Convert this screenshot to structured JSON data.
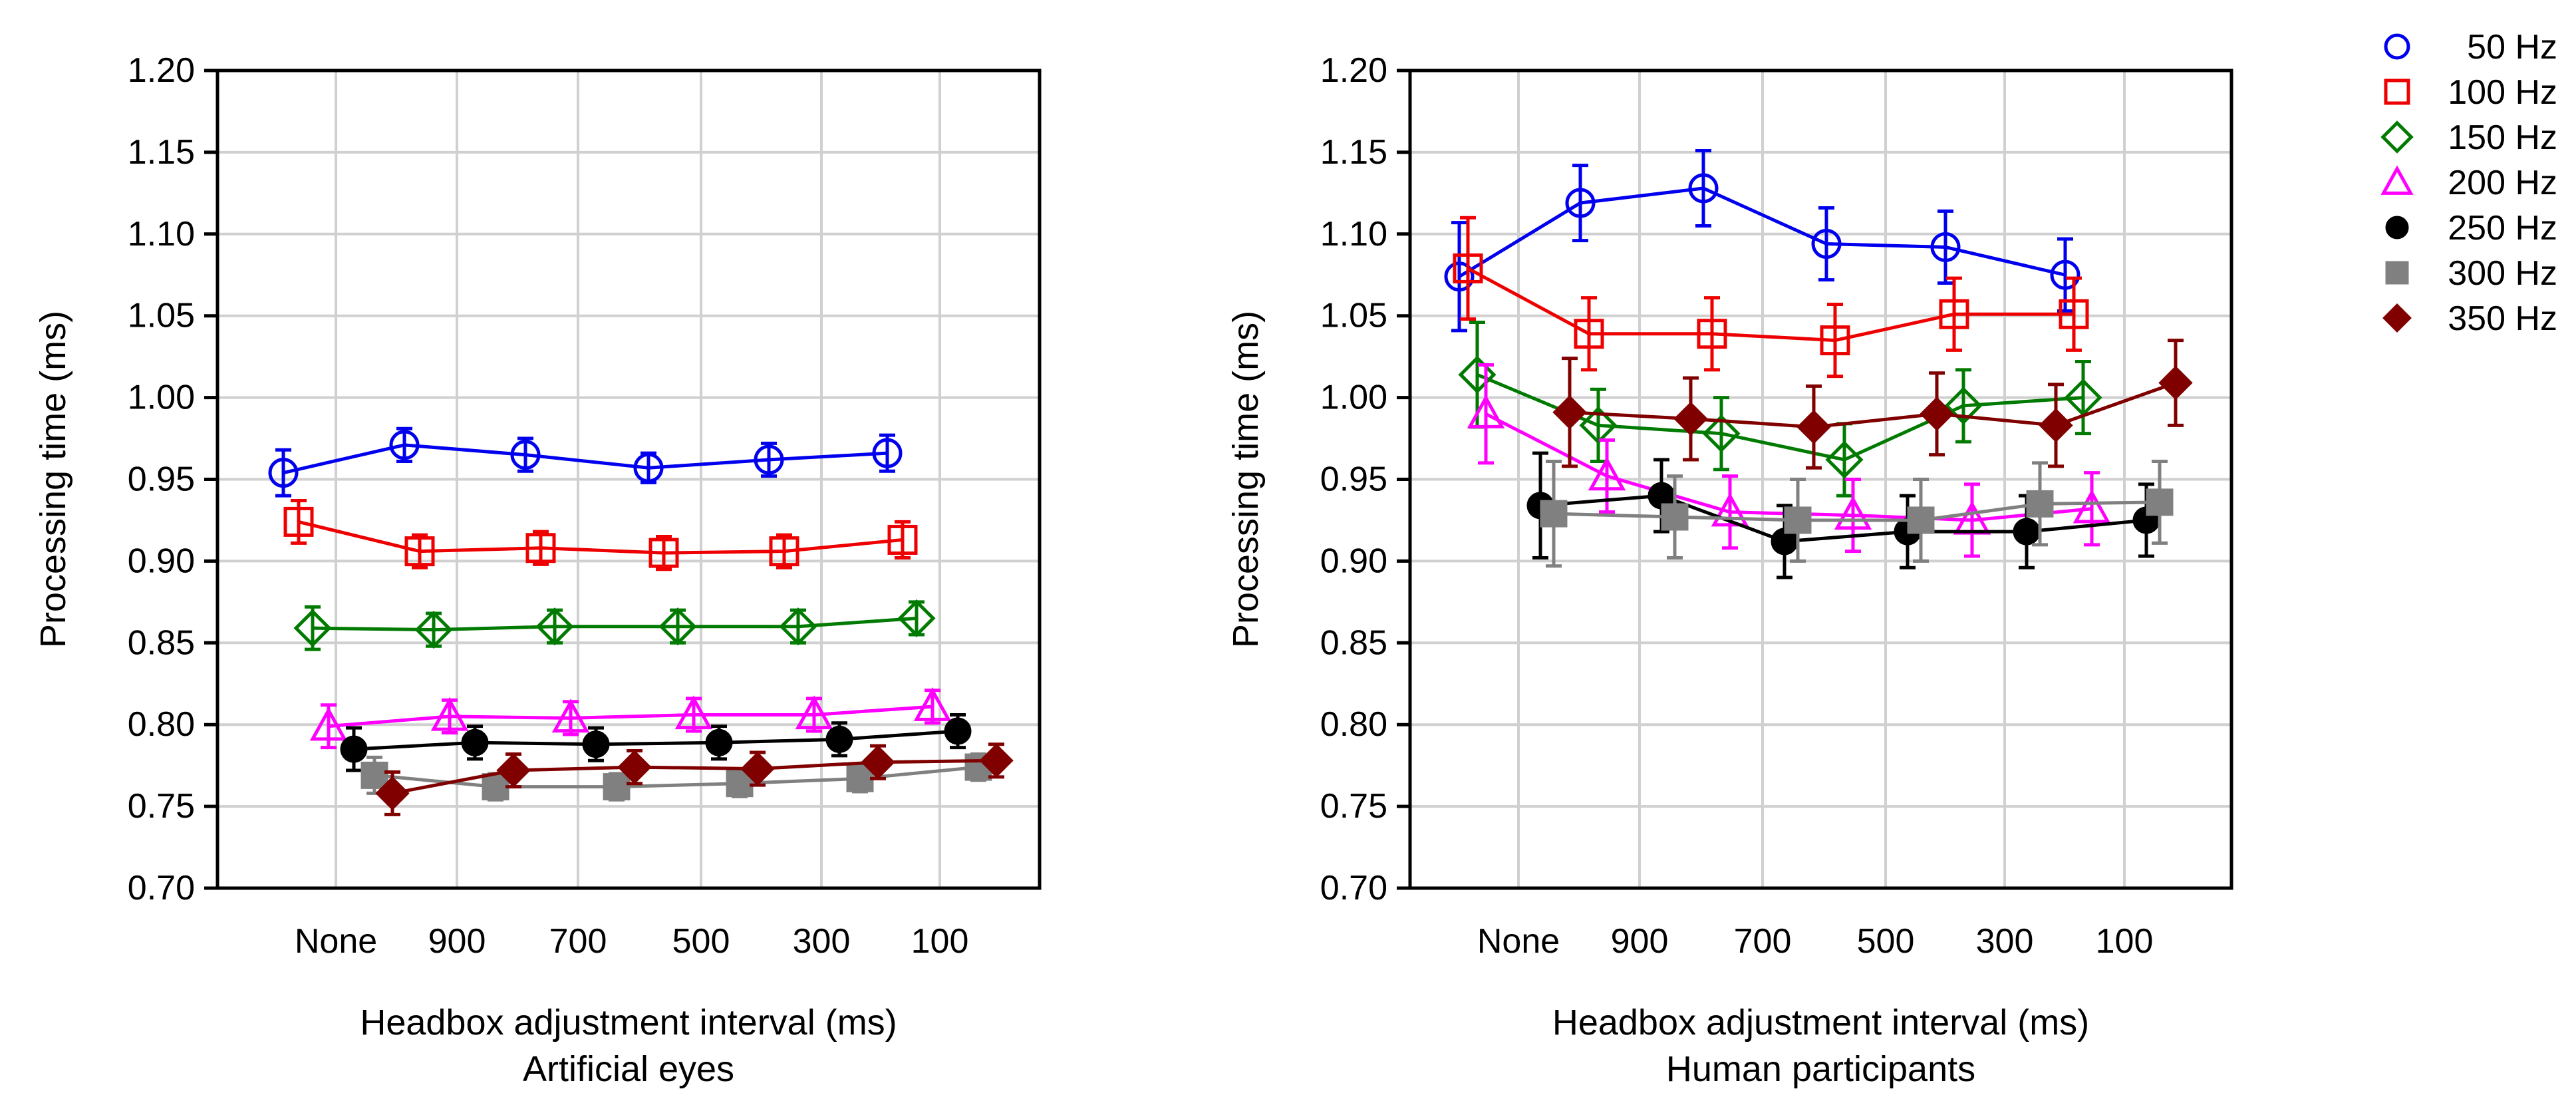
{
  "chart_data": [
    {
      "type": "line",
      "title": "",
      "subtitle": "Artificial eyes",
      "xlabel": "Headbox adjustment interval (ms)",
      "ylabel": "Processing time (ms)",
      "categories": [
        "None",
        "900",
        "700",
        "500",
        "300",
        "100"
      ],
      "ylim": [
        0.7,
        1.2
      ],
      "yticks": [
        "0.70",
        "0.75",
        "0.80",
        "0.85",
        "0.90",
        "0.95",
        "1.00",
        "1.05",
        "1.10",
        "1.15",
        "1.20"
      ],
      "grid": true,
      "series": [
        {
          "name": "50 Hz",
          "values": [
            0.954,
            0.971,
            0.965,
            0.957,
            0.962,
            0.966
          ],
          "errors": [
            0.014,
            0.01,
            0.01,
            0.009,
            0.01,
            0.011
          ]
        },
        {
          "name": "100 Hz",
          "values": [
            0.924,
            0.906,
            0.908,
            0.905,
            0.906,
            0.913
          ],
          "errors": [
            0.013,
            0.01,
            0.01,
            0.01,
            0.01,
            0.011
          ]
        },
        {
          "name": "150 Hz",
          "values": [
            0.859,
            0.858,
            0.86,
            0.86,
            0.86,
            0.865
          ],
          "errors": [
            0.013,
            0.01,
            0.01,
            0.01,
            0.01,
            0.01
          ]
        },
        {
          "name": "200 Hz",
          "values": [
            0.799,
            0.805,
            0.804,
            0.806,
            0.806,
            0.811
          ],
          "errors": [
            0.013,
            0.01,
            0.01,
            0.01,
            0.01,
            0.01
          ]
        },
        {
          "name": "250 Hz",
          "values": [
            0.785,
            0.789,
            0.788,
            0.789,
            0.791,
            0.796
          ],
          "errors": [
            0.013,
            0.01,
            0.01,
            0.01,
            0.01,
            0.01
          ]
        },
        {
          "name": "300 Hz",
          "values": [
            0.769,
            0.762,
            0.762,
            0.764,
            0.767,
            0.774
          ],
          "errors": [
            0.011,
            0.008,
            0.008,
            0.008,
            0.008,
            0.008
          ]
        },
        {
          "name": "350 Hz",
          "values": [
            0.758,
            0.772,
            0.774,
            0.773,
            0.777,
            0.778
          ],
          "errors": [
            0.013,
            0.01,
            0.01,
            0.01,
            0.01,
            0.01
          ]
        }
      ]
    },
    {
      "type": "line",
      "title": "",
      "subtitle": "Human participants",
      "xlabel": "Headbox adjustment interval (ms)",
      "ylabel": "Processing time (ms)",
      "categories": [
        "None",
        "900",
        "700",
        "500",
        "300",
        "100"
      ],
      "ylim": [
        0.7,
        1.2
      ],
      "yticks": [
        "0.70",
        "0.75",
        "0.80",
        "0.85",
        "0.90",
        "0.95",
        "1.00",
        "1.05",
        "1.10",
        "1.15",
        "1.20"
      ],
      "grid": true,
      "series": [
        {
          "name": "50 Hz",
          "values": [
            1.074,
            1.119,
            1.128,
            1.094,
            1.092,
            1.075
          ],
          "errors": [
            0.033,
            0.023,
            0.023,
            0.022,
            0.022,
            0.022
          ]
        },
        {
          "name": "100 Hz",
          "values": [
            1.079,
            1.039,
            1.039,
            1.035,
            1.051,
            1.051
          ],
          "errors": [
            0.031,
            0.022,
            0.022,
            0.022,
            0.022,
            0.022
          ]
        },
        {
          "name": "150 Hz",
          "values": [
            1.014,
            0.983,
            0.978,
            0.962,
            0.995,
            1.0
          ],
          "errors": [
            0.032,
            0.022,
            0.022,
            0.022,
            0.022,
            0.022
          ]
        },
        {
          "name": "200 Hz",
          "values": [
            0.99,
            0.952,
            0.93,
            0.928,
            0.925,
            0.932
          ],
          "errors": [
            0.03,
            0.022,
            0.022,
            0.022,
            0.022,
            0.022
          ]
        },
        {
          "name": "250 Hz",
          "values": [
            0.934,
            0.94,
            0.912,
            0.918,
            0.918,
            0.925
          ],
          "errors": [
            0.032,
            0.022,
            0.022,
            0.022,
            0.022,
            0.022
          ]
        },
        {
          "name": "300 Hz",
          "values": [
            0.929,
            0.927,
            0.925,
            0.925,
            0.935,
            0.936
          ],
          "errors": [
            0.032,
            0.025,
            0.025,
            0.025,
            0.025,
            0.025
          ]
        },
        {
          "name": "350 Hz",
          "values": [
            0.991,
            0.987,
            0.982,
            0.99,
            0.983,
            1.009
          ],
          "errors": [
            0.033,
            0.025,
            0.025,
            0.025,
            0.025,
            0.026
          ]
        }
      ]
    }
  ],
  "legend": {
    "placement": "top-right",
    "items": [
      {
        "label": "50 Hz",
        "marker": "circle-open",
        "color": "#0000ee"
      },
      {
        "label": "100 Hz",
        "marker": "square-open",
        "color": "#ee0000"
      },
      {
        "label": "150 Hz",
        "marker": "diamond-open",
        "color": "#007a00"
      },
      {
        "label": "200 Hz",
        "marker": "triangle-open",
        "color": "#ff00ff"
      },
      {
        "label": "250 Hz",
        "marker": "circle-filled",
        "color": "#000000"
      },
      {
        "label": "300 Hz",
        "marker": "square-filled",
        "color": "#808080"
      },
      {
        "label": "350 Hz",
        "marker": "diamond-filled",
        "color": "#800000"
      }
    ]
  }
}
